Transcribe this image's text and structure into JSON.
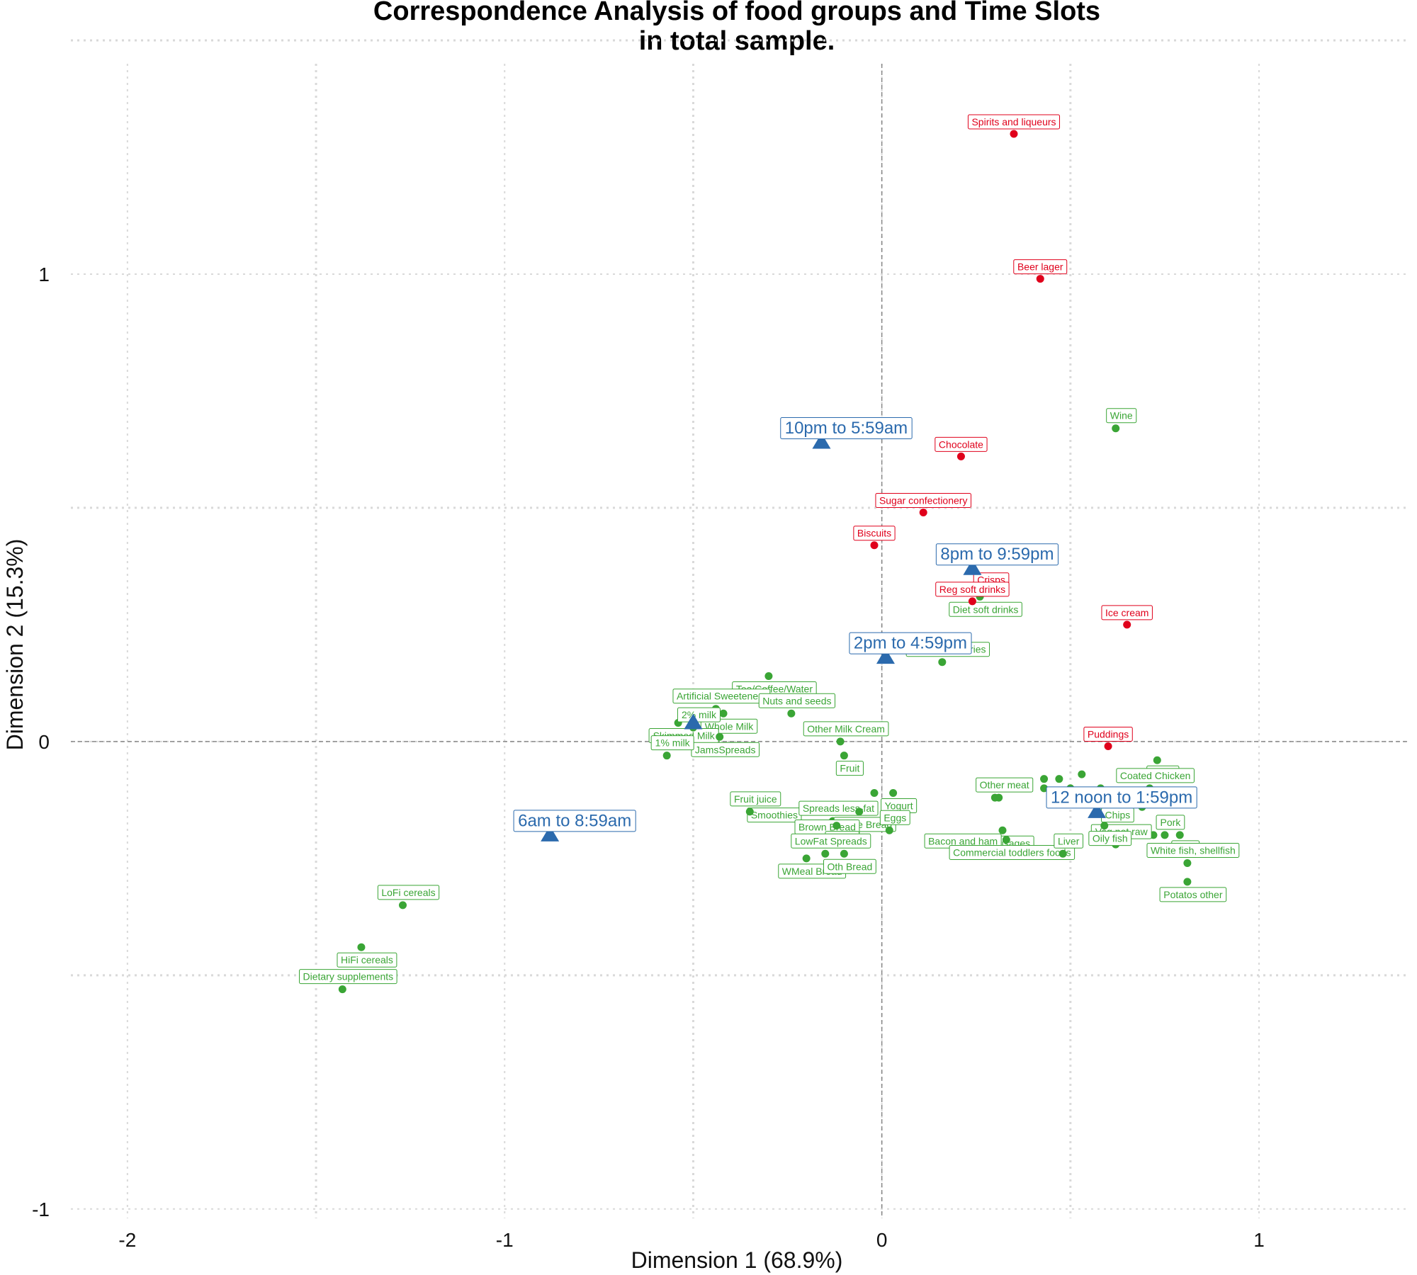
{
  "chart_data": {
    "type": "scatter",
    "title_line1": "Correspondence Analysis of food groups and Time Slots",
    "title_line2": "in total sample.",
    "xlabel": "Dimension 1 (68.9%)",
    "ylabel": "Dimension 2 (15.3%)",
    "xlim": [
      -2.15,
      1.4
    ],
    "ylim": [
      -1.02,
      1.45
    ],
    "x_ticks": [
      {
        "value": -2,
        "label": "-2"
      },
      {
        "value": -1,
        "label": "-1"
      },
      {
        "value": 0,
        "label": "0"
      },
      {
        "value": 1,
        "label": "1"
      }
    ],
    "y_ticks": [
      {
        "value": -1,
        "label": "-1"
      },
      {
        "value": 0,
        "label": "0"
      },
      {
        "value": 1,
        "label": "1"
      }
    ],
    "grid": true,
    "colors": {
      "time_slot": "#2b6aad",
      "red_food": "#e0001b",
      "green_food": "#3aa535",
      "grid": "#d9d9d9",
      "zero_line": "#888888"
    },
    "time_slots": [
      {
        "label": "10pm to 5:59am",
        "x": -0.16,
        "y": 0.64
      },
      {
        "label": "8pm to 9:59pm",
        "x": 0.24,
        "y": 0.37
      },
      {
        "label": "2pm to 4:59pm",
        "x": 0.01,
        "y": 0.18
      },
      {
        "label": "12 noon to 1:59pm",
        "x": 0.57,
        "y": -0.15
      },
      {
        "label": "6am to 8:59am",
        "x": -0.88,
        "y": -0.2
      },
      {
        "label": "",
        "x": -0.5,
        "y": 0.04
      }
    ],
    "foods_red": [
      {
        "label": "Spirits and liqueurs",
        "x": 0.35,
        "y": 1.3
      },
      {
        "label": "Beer lager",
        "x": 0.42,
        "y": 0.99
      },
      {
        "label": "Chocolate",
        "x": 0.21,
        "y": 0.61
      },
      {
        "label": "Sugar confectionery",
        "x": 0.11,
        "y": 0.49
      },
      {
        "label": "Biscuits",
        "x": -0.02,
        "y": 0.42
      },
      {
        "label": "Crisps",
        "x": 0.29,
        "y": 0.32
      },
      {
        "label": "Reg soft drinks",
        "x": 0.24,
        "y": 0.3
      },
      {
        "label": "Ice cream",
        "x": 0.65,
        "y": 0.25
      },
      {
        "label": "Puddings",
        "x": 0.6,
        "y": -0.01
      }
    ],
    "foods_green": [
      {
        "label": "Wine",
        "x": 0.62,
        "y": 0.67
      },
      {
        "label": "Diet soft drinks",
        "x": 0.26,
        "y": 0.31
      },
      {
        "label": "Cakes & Pastries",
        "x": 0.16,
        "y": 0.17
      },
      {
        "label": "Tea/Coffee/Water",
        "x": -0.3,
        "y": 0.14
      },
      {
        "label": "Artificial Sweeteners",
        "x": -0.44,
        "y": 0.07
      },
      {
        "label": "Whole Milk",
        "x": -0.42,
        "y": 0.06
      },
      {
        "label": "Nuts and seeds",
        "x": -0.24,
        "y": 0.06
      },
      {
        "label": "Skimmed Milk",
        "x": -0.54,
        "y": 0.04
      },
      {
        "label": "2% milk",
        "x": -0.5,
        "y": 0.03
      },
      {
        "label": "JamsSpreads",
        "x": -0.43,
        "y": 0.01
      },
      {
        "label": "Other Milk Cream",
        "x": -0.11,
        "y": 0.0
      },
      {
        "label": "Fruit",
        "x": -0.1,
        "y": -0.03
      },
      {
        "label": "1% milk",
        "x": -0.57,
        "y": -0.03
      },
      {
        "label": "Lamb",
        "x": 0.73,
        "y": -0.04
      },
      {
        "label": "Coated Chicken",
        "x": 0.71,
        "y": -0.1
      },
      {
        "label": "Yogurt",
        "x": 0.03,
        "y": -0.11
      },
      {
        "label": "Other meat",
        "x": 0.31,
        "y": -0.12
      },
      {
        "label": "Smoothies",
        "x": -0.3,
        "y": -0.13
      },
      {
        "label": "Spreads less-fat",
        "x": -0.13,
        "y": -0.17
      },
      {
        "label": "White Bread",
        "x": -0.06,
        "y": -0.15
      },
      {
        "label": "Fruit juice",
        "x": -0.35,
        "y": -0.15
      },
      {
        "label": "Chips",
        "x": 0.61,
        "y": -0.13
      },
      {
        "label": "Brown Bread",
        "x": -0.16,
        "y": -0.21
      },
      {
        "label": "Butter",
        "x": -0.12,
        "y": -0.18
      },
      {
        "label": "Eggs",
        "x": 0.02,
        "y": -0.19
      },
      {
        "label": "Sausages",
        "x": 0.32,
        "y": -0.19
      },
      {
        "label": "Pork",
        "x": 0.75,
        "y": -0.2
      },
      {
        "label": "Beef",
        "x": 0.79,
        "y": -0.2
      },
      {
        "label": "Veg not raw",
        "x": 0.62,
        "y": -0.22
      },
      {
        "label": "WMeal Bread",
        "x": -0.2,
        "y": -0.25
      },
      {
        "label": "LowFat Spreads",
        "x": -0.15,
        "y": -0.24
      },
      {
        "label": "Oth Bread",
        "x": -0.1,
        "y": -0.24
      },
      {
        "label": "Bacon and ham",
        "x": 0.2,
        "y": -0.24
      },
      {
        "label": "Commercial toddlers foods",
        "x": 0.33,
        "y": -0.21
      },
      {
        "label": "Liver",
        "x": 0.48,
        "y": -0.24
      },
      {
        "label": "Oily fish",
        "x": 0.59,
        "y": -0.18
      },
      {
        "label": "White fish, shellfish",
        "x": 0.81,
        "y": -0.26
      },
      {
        "label": "Potatos other",
        "x": 0.81,
        "y": -0.3
      },
      {
        "label": "LoFi cereals",
        "x": -1.27,
        "y": -0.35
      },
      {
        "label": "HiFi cereals",
        "x": -1.38,
        "y": -0.44
      },
      {
        "label": "Dietary supplements",
        "x": -1.43,
        "y": -0.53
      }
    ],
    "extra_green_points": [
      {
        "x": 0.43,
        "y": -0.08
      },
      {
        "x": 0.47,
        "y": -0.08
      },
      {
        "x": 0.53,
        "y": -0.07
      },
      {
        "x": 0.43,
        "y": -0.1
      },
      {
        "x": 0.5,
        "y": -0.1
      },
      {
        "x": 0.58,
        "y": -0.1
      },
      {
        "x": 0.64,
        "y": -0.11
      },
      {
        "x": 0.67,
        "y": -0.12
      },
      {
        "x": 0.69,
        "y": -0.14
      },
      {
        "x": 0.72,
        "y": -0.2
      },
      {
        "x": -0.38,
        "y": -0.13
      },
      {
        "x": 0.3,
        "y": -0.12
      },
      {
        "x": -0.02,
        "y": -0.11
      }
    ]
  }
}
